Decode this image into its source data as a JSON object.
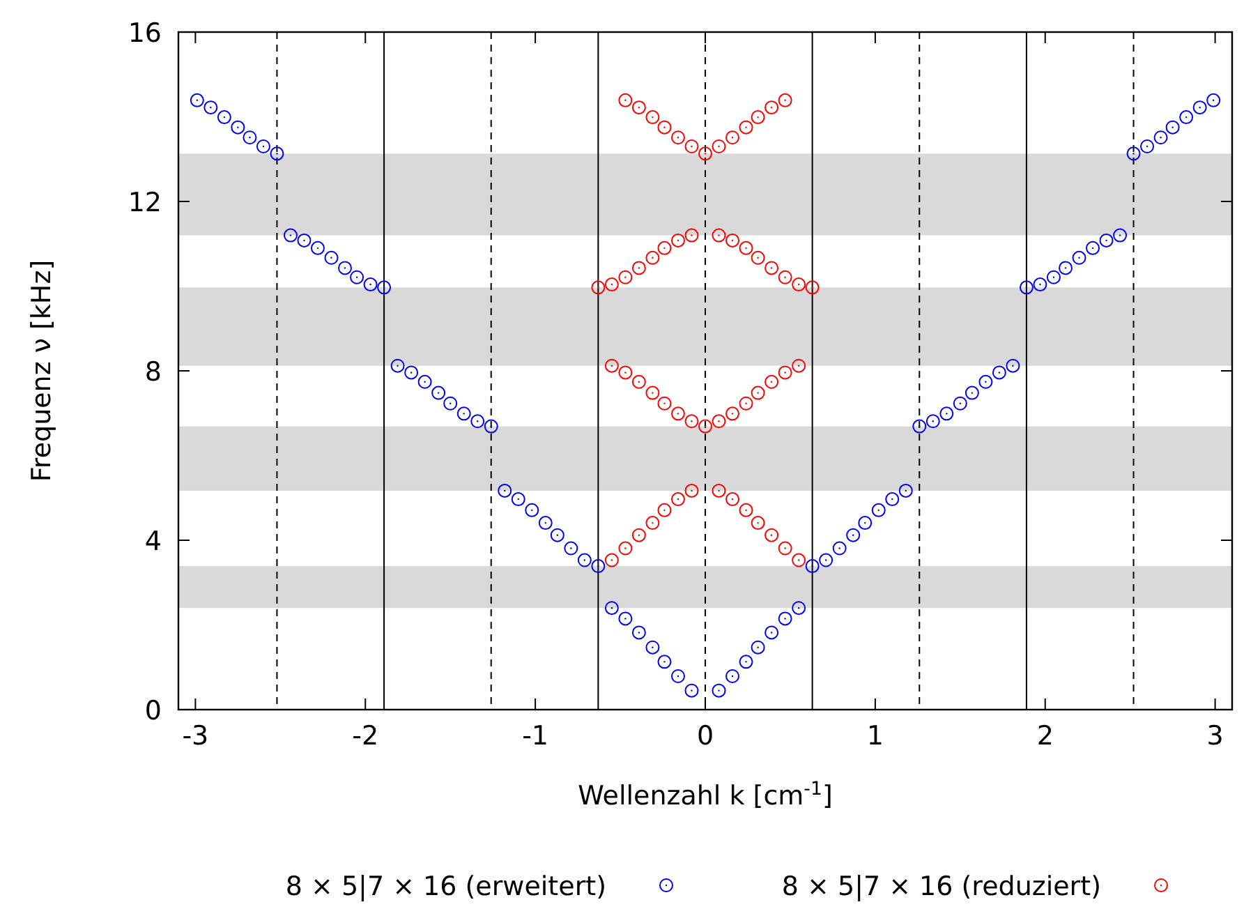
{
  "chart_data": {
    "type": "scatter",
    "xlabel": "Wellenzahl k [cm$^{-1}$]",
    "ylabel": "Frequenz ν [kHz]",
    "xlim": [
      -3.1,
      3.1
    ],
    "ylim": [
      0,
      16
    ],
    "xticks": [
      -3,
      -2,
      -1,
      0,
      1,
      2,
      3
    ],
    "yticks": [
      0,
      4,
      8,
      12,
      16
    ],
    "grid": false,
    "legend": "bottom",
    "marker": "circle",
    "series": [
      {
        "name": "8 × 5|7 × 16 (erweitert)",
        "color": "#0000ff",
        "x": [
          -2.99,
          -2.91,
          -2.83,
          -2.75,
          -2.68,
          -2.6,
          -2.52,
          -2.44,
          -2.36,
          -2.28,
          -2.2,
          -2.12,
          -2.05,
          -1.97,
          -1.89,
          -1.81,
          -1.73,
          -1.65,
          -1.57,
          -1.5,
          -1.42,
          -1.34,
          -1.26,
          -1.18,
          -1.1,
          -1.02,
          -0.94,
          -0.87,
          -0.79,
          -0.71,
          -0.63,
          -0.55,
          -0.47,
          -0.39,
          -0.31,
          -0.24,
          -0.16,
          -0.08,
          0.08,
          0.16,
          0.24,
          0.31,
          0.39,
          0.47,
          0.55,
          0.63,
          0.71,
          0.79,
          0.87,
          0.94,
          1.02,
          1.1,
          1.18,
          1.26,
          1.34,
          1.42,
          1.5,
          1.57,
          1.65,
          1.73,
          1.81,
          1.89,
          1.97,
          2.05,
          2.12,
          2.2,
          2.28,
          2.36,
          2.44,
          2.52,
          2.6,
          2.68,
          2.75,
          2.83,
          2.91,
          2.99
        ],
        "values": [
          14.39,
          14.22,
          13.99,
          13.75,
          13.51,
          13.3,
          13.13,
          11.2,
          11.08,
          10.9,
          10.67,
          10.43,
          10.21,
          10.04,
          9.97,
          8.12,
          7.96,
          7.74,
          7.48,
          7.23,
          6.99,
          6.81,
          6.69,
          5.17,
          4.97,
          4.71,
          4.41,
          4.12,
          3.81,
          3.53,
          3.39,
          2.4,
          2.15,
          1.82,
          1.47,
          1.13,
          0.79,
          0.45,
          0.45,
          0.79,
          1.13,
          1.47,
          1.82,
          2.15,
          2.4,
          3.39,
          3.53,
          3.81,
          4.12,
          4.41,
          4.71,
          4.97,
          5.17,
          6.69,
          6.81,
          6.99,
          7.23,
          7.48,
          7.74,
          7.96,
          8.12,
          9.97,
          10.04,
          10.21,
          10.43,
          10.67,
          10.9,
          11.08,
          11.2,
          13.13,
          13.3,
          13.51,
          13.75,
          13.99,
          14.22,
          14.39
        ]
      },
      {
        "name": "8 × 5|7 × 16 (reduziert)",
        "color": "#ff0000",
        "x": [
          -0.55,
          -0.47,
          -0.39,
          -0.31,
          -0.24,
          -0.16,
          -0.08,
          0.08,
          0.16,
          0.24,
          0.31,
          0.39,
          0.47,
          0.55,
          -0.55,
          -0.47,
          -0.39,
          -0.31,
          -0.24,
          -0.16,
          -0.08,
          0,
          0.08,
          0.16,
          0.24,
          0.31,
          0.39,
          0.47,
          0.55,
          -0.63,
          -0.55,
          -0.47,
          -0.39,
          -0.31,
          -0.24,
          -0.16,
          -0.08,
          0.08,
          0.16,
          0.24,
          0.31,
          0.39,
          0.47,
          0.55,
          0.63,
          -0.47,
          -0.39,
          -0.31,
          -0.24,
          -0.16,
          -0.08,
          0,
          0.08,
          0.16,
          0.24,
          0.31,
          0.39,
          0.47
        ],
        "values": [
          3.53,
          3.81,
          4.12,
          4.41,
          4.71,
          4.97,
          5.17,
          5.17,
          4.97,
          4.71,
          4.41,
          4.12,
          3.81,
          3.53,
          8.12,
          7.96,
          7.74,
          7.48,
          7.23,
          6.99,
          6.81,
          6.69,
          6.81,
          6.99,
          7.23,
          7.48,
          7.74,
          7.96,
          8.12,
          9.97,
          10.04,
          10.21,
          10.43,
          10.67,
          10.9,
          11.08,
          11.2,
          11.2,
          11.08,
          10.9,
          10.67,
          10.43,
          10.21,
          10.04,
          9.97,
          14.39,
          14.22,
          13.99,
          13.75,
          13.51,
          13.3,
          13.13,
          13.3,
          13.51,
          13.75,
          13.99,
          14.22,
          14.39
        ]
      }
    ],
    "bands": [
      {
        "axis": "y",
        "from": 2.4,
        "to": 3.39,
        "color": "#d9d9d9"
      },
      {
        "axis": "y",
        "from": 5.17,
        "to": 6.69,
        "color": "#d9d9d9"
      },
      {
        "axis": "y",
        "from": 8.12,
        "to": 9.97,
        "color": "#d9d9d9"
      },
      {
        "axis": "y",
        "from": 11.2,
        "to": 13.13,
        "color": "#d9d9d9"
      }
    ],
    "ref_lines": [
      {
        "axis": "x",
        "value": -2.52,
        "line_style": "dashed",
        "color": "#000000"
      },
      {
        "axis": "x",
        "value": -1.89,
        "line_style": "solid",
        "color": "#000000"
      },
      {
        "axis": "x",
        "value": -1.26,
        "line_style": "dashed",
        "color": "#000000"
      },
      {
        "axis": "x",
        "value": -0.63,
        "line_style": "solid",
        "color": "#000000"
      },
      {
        "axis": "x",
        "value": 0,
        "line_style": "dashed",
        "color": "#000000"
      },
      {
        "axis": "x",
        "value": 0.63,
        "line_style": "solid",
        "color": "#000000"
      },
      {
        "axis": "x",
        "value": 1.26,
        "line_style": "dashed",
        "color": "#000000"
      },
      {
        "axis": "x",
        "value": 1.89,
        "line_style": "solid",
        "color": "#000000"
      },
      {
        "axis": "x",
        "value": 2.52,
        "line_style": "dashed",
        "color": "#000000"
      }
    ]
  }
}
